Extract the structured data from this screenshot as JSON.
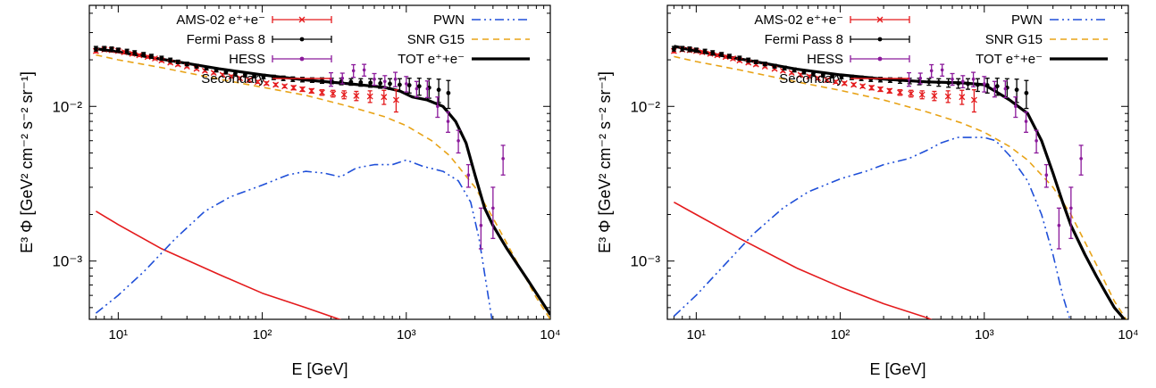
{
  "colors": {
    "ams": "#e41a1c",
    "fermi": "#000000",
    "hess": "#8b1a9b",
    "secondary": "#e41a1c",
    "pwn": "#1f4fd8",
    "snr": "#e8a317",
    "tot": "#000000"
  },
  "chart_data": [
    {
      "type": "line",
      "xlabel": "E [GeV]",
      "ylabel": "E³ Φ [GeV² cm⁻² s⁻² sr⁻¹]",
      "x_scale": "log",
      "y_scale": "log",
      "xlim": [
        6.3,
        10000
      ],
      "ylim": [
        0.00042,
        0.045
      ],
      "x_ticks": [
        "10¹",
        "10²",
        "10³",
        "10⁴"
      ],
      "y_ticks": [
        "10⁻³",
        "10⁻²"
      ],
      "grid": false,
      "legend": {
        "position": "top",
        "entries": [
          "AMS-02 e⁺+e⁻",
          "Fermi Pass 8",
          "HESS",
          "Secondary",
          "PWN",
          "SNR G15",
          "TOT e⁺+e⁻"
        ]
      },
      "series": [
        {
          "name": "AMS-02 e⁺+e⁻",
          "style": "points-errorbars",
          "color_key": "ams",
          "x": [
            7,
            8,
            9,
            10,
            11,
            12.5,
            14,
            16,
            18,
            20,
            23,
            26,
            30,
            35,
            40,
            46,
            53,
            61,
            70,
            81,
            93,
            107,
            124,
            143,
            165,
            190,
            220,
            260,
            310,
            370,
            450,
            560,
            700,
            850
          ],
          "y": [
            0.0228,
            0.0233,
            0.0231,
            0.0228,
            0.0224,
            0.0219,
            0.0214,
            0.0209,
            0.0204,
            0.0198,
            0.0192,
            0.0187,
            0.0181,
            0.0175,
            0.017,
            0.0165,
            0.016,
            0.0156,
            0.0152,
            0.0148,
            0.0144,
            0.0141,
            0.0138,
            0.0135,
            0.0132,
            0.0129,
            0.0126,
            0.0123,
            0.0121,
            0.0119,
            0.0117,
            0.0116,
            0.0115,
            0.011
          ],
          "err": [
            0.0006,
            0.0006,
            0.0006,
            0.0005,
            0.0005,
            0.0005,
            0.0004,
            0.0004,
            0.0004,
            0.0004,
            0.0004,
            0.0004,
            0.0003,
            0.0003,
            0.0003,
            0.0003,
            0.0003,
            0.0003,
            0.0003,
            0.0003,
            0.0003,
            0.0003,
            0.0003,
            0.0003,
            0.0004,
            0.0004,
            0.0004,
            0.0005,
            0.0006,
            0.0007,
            0.0008,
            0.001,
            0.0012,
            0.0018
          ]
        },
        {
          "name": "Fermi Pass 8",
          "style": "points-errorbars",
          "color_key": "fermi",
          "x": [
            7,
            8,
            9,
            10,
            11.5,
            13,
            15,
            17,
            20,
            23,
            26,
            30,
            35,
            41,
            48,
            56,
            65,
            76,
            88,
            102,
            120,
            140,
            163,
            190,
            222,
            260,
            303,
            354,
            413,
            483,
            564,
            660,
            770,
            900,
            1050,
            1230,
            1440,
            1680,
            1960
          ],
          "y": [
            0.0236,
            0.0236,
            0.0234,
            0.0231,
            0.0227,
            0.0222,
            0.0217,
            0.0211,
            0.0205,
            0.0199,
            0.0194,
            0.0188,
            0.0182,
            0.0177,
            0.0172,
            0.0167,
            0.0163,
            0.016,
            0.0158,
            0.0156,
            0.0154,
            0.0152,
            0.015,
            0.0149,
            0.0148,
            0.0147,
            0.0146,
            0.0145,
            0.0144,
            0.0143,
            0.0142,
            0.0141,
            0.014,
            0.0138,
            0.0137,
            0.0135,
            0.0132,
            0.0128,
            0.0122
          ],
          "err": [
            0.0008,
            0.0008,
            0.0008,
            0.0007,
            0.0007,
            0.0007,
            0.0006,
            0.0006,
            0.0006,
            0.0006,
            0.0005,
            0.0005,
            0.0005,
            0.0005,
            0.0005,
            0.0005,
            0.0005,
            0.0005,
            0.0005,
            0.0005,
            0.0005,
            0.0005,
            0.0005,
            0.0005,
            0.0005,
            0.0006,
            0.0006,
            0.0007,
            0.0007,
            0.0008,
            0.0009,
            0.001,
            0.0011,
            0.0013,
            0.0015,
            0.0017,
            0.0019,
            0.0022,
            0.0025
          ]
        },
        {
          "name": "HESS",
          "style": "points-errorbars",
          "color_key": "hess",
          "x": [
            300,
            360,
            430,
            510,
            600,
            710,
            840,
            1000,
            1180,
            1400,
            1650,
            1950,
            2300,
            2700,
            3300,
            4000,
            4700
          ],
          "y": [
            0.015,
            0.0152,
            0.017,
            0.0172,
            0.015,
            0.0145,
            0.015,
            0.014,
            0.013,
            0.013,
            0.01,
            0.008,
            0.006,
            0.0036,
            0.0017,
            0.0022,
            0.0046
          ],
          "err": [
            0.0015,
            0.0012,
            0.0016,
            0.0015,
            0.0013,
            0.0013,
            0.0016,
            0.0016,
            0.0015,
            0.0016,
            0.0015,
            0.0012,
            0.001,
            0.0006,
            0.0005,
            0.0008,
            0.001
          ]
        },
        {
          "name": "Secondary",
          "style": "solid",
          "color_key": "secondary",
          "x": [
            7,
            10,
            20,
            50,
            100,
            200,
            400,
            1000
          ],
          "y": [
            0.0021,
            0.00172,
            0.0012,
            0.00082,
            0.00062,
            0.0005,
            0.0004,
            0.0003
          ]
        },
        {
          "name": "PWN",
          "style": "dashdot",
          "color_key": "pwn",
          "x": [
            7,
            10,
            15,
            25,
            40,
            60,
            100,
            150,
            200,
            270,
            350,
            450,
            600,
            800,
            1000,
            1300,
            1800,
            2300,
            2800,
            3200,
            3600,
            4000
          ],
          "y": [
            0.00046,
            0.0006,
            0.00085,
            0.0014,
            0.0021,
            0.0026,
            0.0031,
            0.0036,
            0.0038,
            0.0037,
            0.0035,
            0.004,
            0.0042,
            0.0042,
            0.0045,
            0.0041,
            0.0038,
            0.0033,
            0.0024,
            0.0014,
            0.0007,
            0.00038
          ]
        },
        {
          "name": "SNR G15",
          "style": "dashed",
          "color_key": "snr",
          "x": [
            7,
            10,
            20,
            50,
            100,
            200,
            400,
            700,
            1000,
            1500,
            2000,
            3000,
            4000,
            6000,
            8000,
            10000
          ],
          "y": [
            0.0215,
            0.02,
            0.0178,
            0.015,
            0.0133,
            0.0118,
            0.01,
            0.0086,
            0.0075,
            0.006,
            0.0048,
            0.003,
            0.0019,
            0.00095,
            0.00058,
            0.00042
          ]
        },
        {
          "name": "TOT e⁺+e⁻",
          "style": "thick",
          "color_key": "tot",
          "x": [
            7,
            10,
            20,
            50,
            100,
            200,
            400,
            700,
            900,
            1100,
            1400,
            1800,
            2200,
            2600,
            3000,
            3500,
            4000,
            5000,
            7000,
            10000
          ],
          "y": [
            0.0236,
            0.0225,
            0.0202,
            0.0175,
            0.016,
            0.0148,
            0.014,
            0.0133,
            0.0126,
            0.0115,
            0.011,
            0.01,
            0.008,
            0.0058,
            0.0036,
            0.0022,
            0.0017,
            0.0012,
            0.00075,
            0.00045
          ]
        }
      ]
    },
    {
      "type": "line",
      "xlabel": "E [GeV]",
      "ylabel": "E³ Φ [GeV² cm⁻² s⁻² sr⁻¹]",
      "x_scale": "log",
      "y_scale": "log",
      "xlim": [
        6.3,
        10000
      ],
      "ylim": [
        0.00042,
        0.045
      ],
      "x_ticks": [
        "10¹",
        "10²",
        "10³",
        "10⁴"
      ],
      "y_ticks": [
        "10⁻³",
        "10⁻²"
      ],
      "grid": false,
      "legend": {
        "position": "top",
        "entries": [
          "AMS-02 e⁺+e⁻",
          "Fermi Pass 8",
          "HESS",
          "Secondary",
          "PWN",
          "SNR G15",
          "TOT e⁺+e⁻"
        ]
      },
      "series": [
        {
          "name": "AMS-02 e⁺+e⁻",
          "style": "points-errorbars",
          "color_key": "ams",
          "x": [
            7,
            8,
            9,
            10,
            11,
            12.5,
            14,
            16,
            18,
            20,
            23,
            26,
            30,
            35,
            40,
            46,
            53,
            61,
            70,
            81,
            93,
            107,
            124,
            143,
            165,
            190,
            220,
            260,
            310,
            370,
            450,
            560,
            700,
            850
          ],
          "y": [
            0.0228,
            0.0233,
            0.0231,
            0.0228,
            0.0224,
            0.0219,
            0.0214,
            0.0209,
            0.0204,
            0.0198,
            0.0192,
            0.0187,
            0.0181,
            0.0175,
            0.017,
            0.0165,
            0.016,
            0.0156,
            0.0152,
            0.0148,
            0.0144,
            0.0141,
            0.0138,
            0.0135,
            0.0132,
            0.0129,
            0.0126,
            0.0123,
            0.0121,
            0.0119,
            0.0117,
            0.0116,
            0.0115,
            0.011
          ],
          "err": [
            0.0006,
            0.0006,
            0.0006,
            0.0005,
            0.0005,
            0.0005,
            0.0004,
            0.0004,
            0.0004,
            0.0004,
            0.0004,
            0.0004,
            0.0003,
            0.0003,
            0.0003,
            0.0003,
            0.0003,
            0.0003,
            0.0003,
            0.0003,
            0.0003,
            0.0003,
            0.0003,
            0.0003,
            0.0004,
            0.0004,
            0.0004,
            0.0005,
            0.0006,
            0.0007,
            0.0008,
            0.001,
            0.0012,
            0.0018
          ]
        },
        {
          "name": "Fermi Pass 8",
          "style": "points-errorbars",
          "color_key": "fermi",
          "x": [
            7,
            8,
            9,
            10,
            11.5,
            13,
            15,
            17,
            20,
            23,
            26,
            30,
            35,
            41,
            48,
            56,
            65,
            76,
            88,
            102,
            120,
            140,
            163,
            190,
            222,
            260,
            303,
            354,
            413,
            483,
            564,
            660,
            770,
            900,
            1050,
            1230,
            1440,
            1680,
            1960
          ],
          "y": [
            0.0236,
            0.0236,
            0.0234,
            0.0231,
            0.0227,
            0.0222,
            0.0217,
            0.0211,
            0.0205,
            0.0199,
            0.0194,
            0.0188,
            0.0182,
            0.0177,
            0.0172,
            0.0167,
            0.0163,
            0.016,
            0.0158,
            0.0156,
            0.0154,
            0.0152,
            0.015,
            0.0149,
            0.0148,
            0.0147,
            0.0146,
            0.0145,
            0.0144,
            0.0143,
            0.0142,
            0.0141,
            0.014,
            0.0138,
            0.0137,
            0.0135,
            0.0132,
            0.0128,
            0.0122
          ],
          "err": [
            0.0008,
            0.0008,
            0.0008,
            0.0007,
            0.0007,
            0.0007,
            0.0006,
            0.0006,
            0.0006,
            0.0006,
            0.0005,
            0.0005,
            0.0005,
            0.0005,
            0.0005,
            0.0005,
            0.0005,
            0.0005,
            0.0005,
            0.0005,
            0.0005,
            0.0005,
            0.0005,
            0.0005,
            0.0005,
            0.0006,
            0.0006,
            0.0007,
            0.0007,
            0.0008,
            0.0009,
            0.001,
            0.0011,
            0.0013,
            0.0015,
            0.0017,
            0.0019,
            0.0022,
            0.0025
          ]
        },
        {
          "name": "HESS",
          "style": "points-errorbars",
          "color_key": "hess",
          "x": [
            300,
            360,
            430,
            510,
            600,
            710,
            840,
            1000,
            1180,
            1400,
            1650,
            1950,
            2300,
            2700,
            3300,
            4000,
            4700
          ],
          "y": [
            0.015,
            0.0152,
            0.017,
            0.0172,
            0.015,
            0.0145,
            0.015,
            0.014,
            0.013,
            0.013,
            0.01,
            0.008,
            0.006,
            0.0036,
            0.0017,
            0.0022,
            0.0046
          ],
          "err": [
            0.0015,
            0.0012,
            0.0016,
            0.0015,
            0.0013,
            0.0013,
            0.0016,
            0.0016,
            0.0015,
            0.0016,
            0.0015,
            0.0012,
            0.001,
            0.0006,
            0.0005,
            0.0008,
            0.001
          ]
        },
        {
          "name": "Secondary",
          "style": "solid",
          "color_key": "secondary",
          "x": [
            7,
            10,
            20,
            50,
            100,
            200,
            400,
            450
          ],
          "y": [
            0.0024,
            0.002,
            0.0014,
            0.0009,
            0.00068,
            0.00053,
            0.00043,
            0.00041
          ]
        },
        {
          "name": "PWN",
          "style": "dashdot",
          "color_key": "pwn",
          "x": [
            7,
            10,
            15,
            25,
            40,
            60,
            100,
            150,
            200,
            300,
            400,
            500,
            650,
            800,
            1000,
            1200,
            1500,
            2000,
            2500,
            3000,
            3500,
            4000
          ],
          "y": [
            0.00044,
            0.0006,
            0.0009,
            0.0015,
            0.0022,
            0.0028,
            0.0034,
            0.0038,
            0.0042,
            0.0046,
            0.0052,
            0.0058,
            0.0063,
            0.0063,
            0.0063,
            0.006,
            0.0048,
            0.0033,
            0.002,
            0.0011,
            0.0006,
            0.0004
          ]
        },
        {
          "name": "SNR G15",
          "style": "dashed",
          "color_key": "snr",
          "x": [
            7,
            10,
            20,
            50,
            100,
            200,
            400,
            700,
            1000,
            1500,
            2000,
            3000,
            4000,
            6000,
            8000,
            10000
          ],
          "y": [
            0.021,
            0.0195,
            0.0172,
            0.0144,
            0.0127,
            0.011,
            0.0092,
            0.0078,
            0.0068,
            0.0055,
            0.0045,
            0.003,
            0.002,
            0.00095,
            0.00055,
            0.0004
          ]
        },
        {
          "name": "TOT e⁺+e⁻",
          "style": "thick",
          "color_key": "tot",
          "x": [
            7,
            10,
            20,
            50,
            100,
            200,
            400,
            700,
            1000,
            1200,
            1500,
            2000,
            2500,
            3000,
            3500,
            4000,
            5000,
            6000,
            7000,
            8000,
            9000,
            10000
          ],
          "y": [
            0.0245,
            0.0228,
            0.0203,
            0.0174,
            0.016,
            0.015,
            0.0144,
            0.0142,
            0.0138,
            0.0125,
            0.011,
            0.009,
            0.006,
            0.0037,
            0.0024,
            0.0017,
            0.0011,
            0.0008,
            0.00062,
            0.0005,
            0.00044,
            0.00039
          ]
        }
      ]
    }
  ]
}
